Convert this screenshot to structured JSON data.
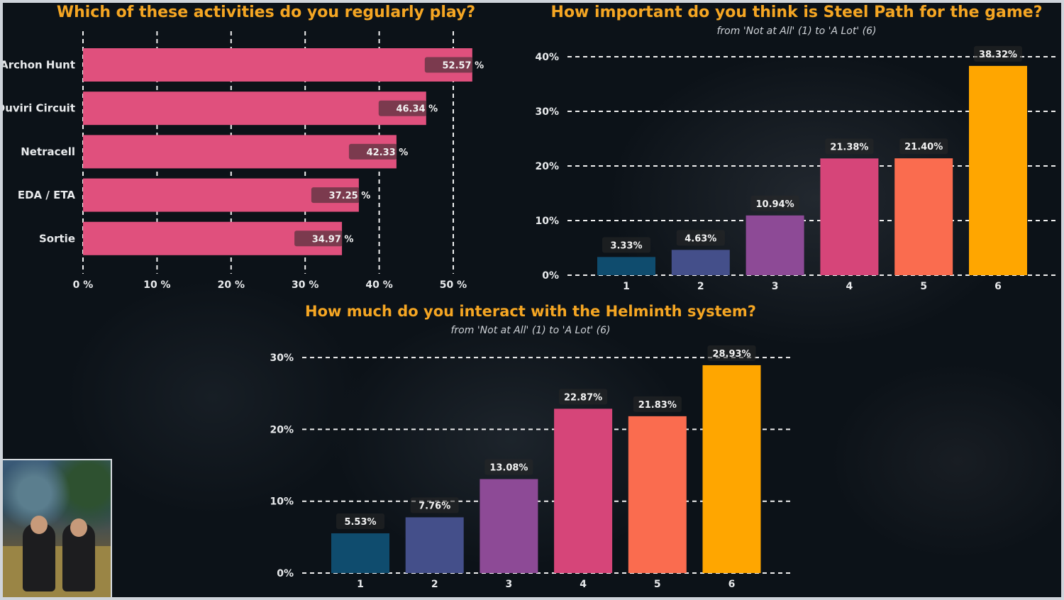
{
  "colors": {
    "title": "#f5a623",
    "bar_pink": "#e0507d",
    "palette": [
      "#0f4c6e",
      "#444f8a",
      "#8d4a96",
      "#d64579",
      "#fa6c4f",
      "#ffa600"
    ]
  },
  "chart_data": [
    {
      "type": "bar",
      "orientation": "horizontal",
      "title": "Which of these activities do you regularly play?",
      "categories": [
        "Archon Hunt",
        "Duviri Circuit",
        "Netracell",
        "EDA / ETA",
        "Sortie"
      ],
      "values": [
        52.57,
        46.34,
        42.33,
        37.25,
        34.97
      ],
      "value_labels": [
        "52.57 %",
        "46.34 %",
        "42.33 %",
        "37.25 %",
        "34.97 %"
      ],
      "xlim": [
        0,
        50
      ],
      "ticks": [
        0,
        10,
        20,
        30,
        40,
        50
      ],
      "tick_labels": [
        "0 %",
        "10 %",
        "20 %",
        "30 %",
        "40 %",
        "50 %"
      ],
      "grid": "vertical dashed"
    },
    {
      "type": "bar",
      "title": "How important do you think is Steel Path for the game?",
      "subtitle": "from 'Not at All' (1) to 'A Lot' (6)",
      "categories": [
        "1",
        "2",
        "3",
        "4",
        "5",
        "6"
      ],
      "values": [
        3.33,
        4.63,
        10.94,
        21.38,
        21.4,
        38.32
      ],
      "value_labels": [
        "3.33%",
        "4.63%",
        "10.94%",
        "21.38%",
        "21.40%",
        "38.32%"
      ],
      "ylim": [
        0,
        40
      ],
      "ticks": [
        0,
        10,
        20,
        30,
        40
      ],
      "tick_labels": [
        "0%",
        "10%",
        "20%",
        "30%",
        "40%"
      ],
      "grid": "horizontal dashed"
    },
    {
      "type": "bar",
      "title": "How much do you interact with the Helminth system?",
      "subtitle": "from 'Not at All' (1) to 'A Lot' (6)",
      "categories": [
        "1",
        "2",
        "3",
        "4",
        "5",
        "6"
      ],
      "values": [
        5.53,
        7.76,
        13.08,
        22.87,
        21.83,
        28.93
      ],
      "value_labels": [
        "5.53%",
        "7.76%",
        "13.08%",
        "22.87%",
        "21.83%",
        "28.93%"
      ],
      "ylim": [
        0,
        30
      ],
      "ticks": [
        0,
        10,
        20,
        30
      ],
      "tick_labels": [
        "0%",
        "10%",
        "20%",
        "30%"
      ],
      "grid": "horizontal dashed"
    }
  ]
}
